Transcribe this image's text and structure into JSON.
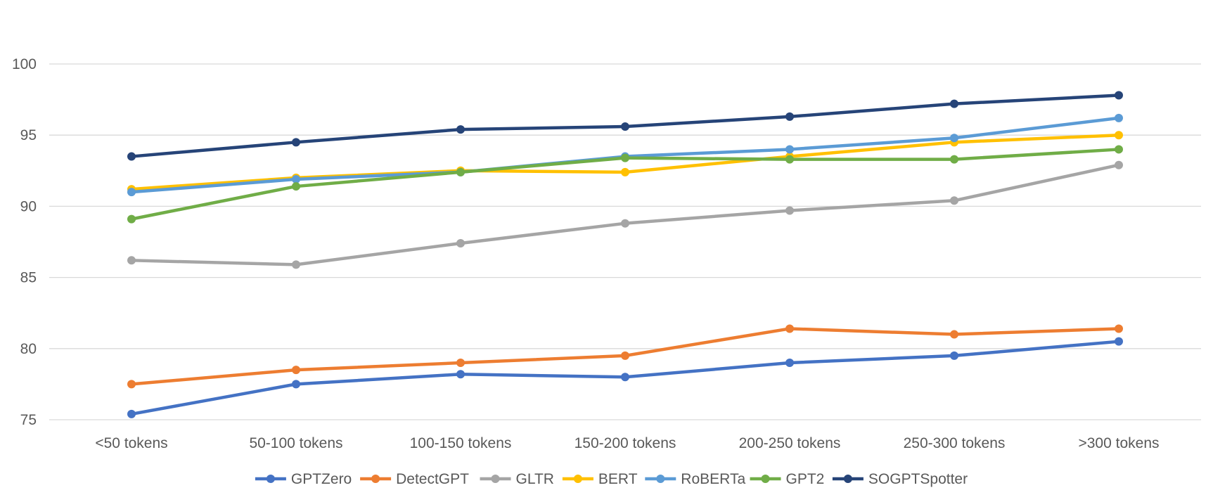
{
  "chart_data": {
    "type": "line",
    "title": "",
    "xlabel": "",
    "ylabel": "",
    "categories": [
      "<50 tokens",
      "50-100 tokens",
      "100-150 tokens",
      "150-200 tokens",
      "200-250 tokens",
      "250-300 tokens",
      ">300 tokens"
    ],
    "ylim": [
      75,
      100
    ],
    "yticks": [
      75,
      80,
      85,
      90,
      95,
      100
    ],
    "grid": true,
    "legend_position": "bottom",
    "series": [
      {
        "name": "GPTZero",
        "color": "#4472C4",
        "values": [
          75.4,
          77.5,
          78.2,
          78.0,
          79.0,
          79.5,
          80.5
        ]
      },
      {
        "name": "DetectGPT",
        "color": "#ED7D31",
        "values": [
          77.5,
          78.5,
          79.0,
          79.5,
          81.4,
          81.0,
          81.4
        ]
      },
      {
        "name": "GLTR",
        "color": "#A5A5A5",
        "values": [
          86.2,
          85.9,
          87.4,
          88.8,
          89.7,
          90.4,
          92.9
        ]
      },
      {
        "name": "BERT",
        "color": "#FFC000",
        "values": [
          91.2,
          92.0,
          92.5,
          92.4,
          93.5,
          94.5,
          95.0
        ]
      },
      {
        "name": "RoBERTa",
        "color": "#5B9BD5",
        "values": [
          91.0,
          91.9,
          92.4,
          93.5,
          94.0,
          94.8,
          96.2
        ]
      },
      {
        "name": "GPT2",
        "color": "#70AD47",
        "values": [
          89.1,
          91.4,
          92.4,
          93.4,
          93.3,
          93.3,
          94.0
        ]
      },
      {
        "name": "SOGPTSpotter",
        "color": "#264478",
        "values": [
          93.5,
          94.5,
          95.4,
          95.6,
          96.3,
          97.2,
          97.8
        ]
      }
    ]
  }
}
